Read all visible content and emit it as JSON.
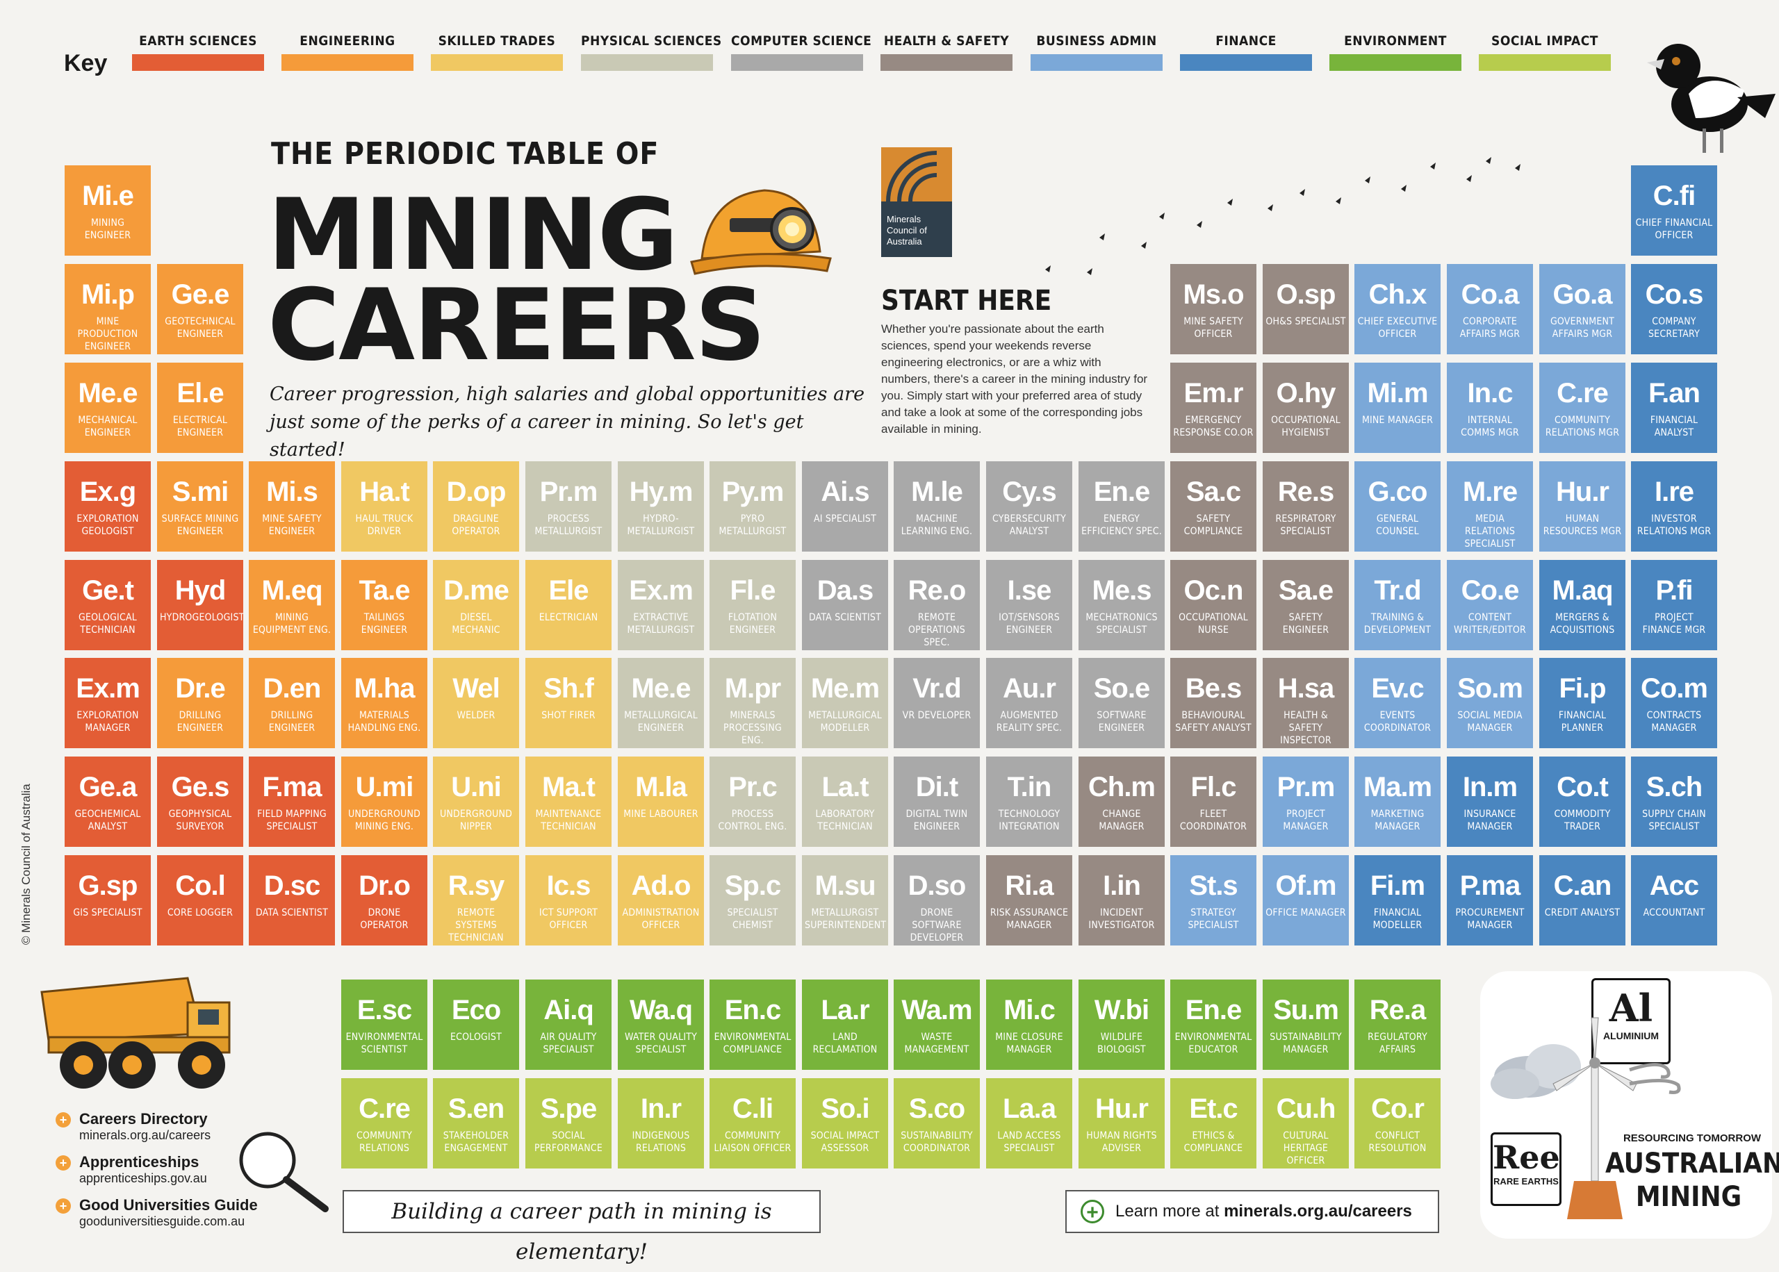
{
  "key": {
    "label": "Key",
    "items": [
      {
        "name": "EARTH SCIENCES",
        "color": "#e35d35"
      },
      {
        "name": "ENGINEERING",
        "color": "#f59b3a"
      },
      {
        "name": "SKILLED TRADES",
        "color": "#f0c862"
      },
      {
        "name": "PHYSICAL SCIENCES",
        "color": "#c9c9b5"
      },
      {
        "name": "COMPUTER SCIENCE",
        "color": "#a9a9a9"
      },
      {
        "name": "HEALTH & SAFETY",
        "color": "#978a83"
      },
      {
        "name": "BUSINESS ADMIN",
        "color": "#7ba8d8"
      },
      {
        "name": "FINANCE",
        "color": "#4a86c0"
      },
      {
        "name": "ENVIRONMENT",
        "color": "#78b43b"
      },
      {
        "name": "SOCIAL IMPACT",
        "color": "#b7cc4d"
      }
    ]
  },
  "title": {
    "small": "THE PERIODIC TABLE OF",
    "line1": "MINING",
    "line2": "CAREERS",
    "tagline": "Career progression, high salaries and global opportunities are just some of the perks of a career in mining. So let's get started!"
  },
  "logo": {
    "text": "Minerals Council of Australia"
  },
  "start": {
    "title": "START HERE",
    "text": "Whether you're passionate about the earth sciences, spend your weekends reverse engineering electronics, or are a whiz with numbers, there's a career in the mining industry for you. Simply start with your preferred area of study and take a look at some of the corresponding jobs available in mining."
  },
  "elements": [
    {
      "sym": "Mi.e",
      "name": "MINING ENGINEER",
      "cat": 1,
      "col": 0,
      "row": 0
    },
    {
      "sym": "Mi.p",
      "name": "MINE PRODUCTION ENGINEER",
      "cat": 1,
      "col": 0,
      "row": 1
    },
    {
      "sym": "Ge.e",
      "name": "GEOTECHNICAL ENGINEER",
      "cat": 1,
      "col": 1,
      "row": 1
    },
    {
      "sym": "Me.e",
      "name": "MECHANICAL ENGINEER",
      "cat": 1,
      "col": 0,
      "row": 2
    },
    {
      "sym": "El.e",
      "name": "ELECTRICAL ENGINEER",
      "cat": 1,
      "col": 1,
      "row": 2
    },
    {
      "sym": "C.fi",
      "name": "CHIEF FINANCIAL OFFICER",
      "cat": 7,
      "col": 17,
      "row": 0
    },
    {
      "sym": "Ms.o",
      "name": "MINE SAFETY OFFICER",
      "cat": 5,
      "col": 12,
      "row": 1
    },
    {
      "sym": "O.sp",
      "name": "OH&S SPECIALIST",
      "cat": 5,
      "col": 13,
      "row": 1
    },
    {
      "sym": "Ch.x",
      "name": "CHIEF EXECUTIVE OFFICER",
      "cat": 6,
      "col": 14,
      "row": 1
    },
    {
      "sym": "Co.a",
      "name": "CORPORATE AFFAIRS MGR",
      "cat": 6,
      "col": 15,
      "row": 1
    },
    {
      "sym": "Go.a",
      "name": "GOVERNMENT AFFAIRS MGR",
      "cat": 6,
      "col": 16,
      "row": 1
    },
    {
      "sym": "Co.s",
      "name": "COMPANY SECRETARY",
      "cat": 7,
      "col": 17,
      "row": 1
    },
    {
      "sym": "Em.r",
      "name": "EMERGENCY RESPONSE CO.OR",
      "cat": 5,
      "col": 12,
      "row": 2
    },
    {
      "sym": "O.hy",
      "name": "OCCUPATIONAL HYGIENIST",
      "cat": 5,
      "col": 13,
      "row": 2
    },
    {
      "sym": "Mi.m",
      "name": "MINE MANAGER",
      "cat": 6,
      "col": 14,
      "row": 2
    },
    {
      "sym": "In.c",
      "name": "INTERNAL COMMS MGR",
      "cat": 6,
      "col": 15,
      "row": 2
    },
    {
      "sym": "C.re",
      "name": "COMMUNITY RELATIONS MGR",
      "cat": 6,
      "col": 16,
      "row": 2
    },
    {
      "sym": "F.an",
      "name": "FINANCIAL ANALYST",
      "cat": 7,
      "col": 17,
      "row": 2
    },
    {
      "sym": "Ex.g",
      "name": "EXPLORATION GEOLOGIST",
      "cat": 0,
      "col": 0,
      "row": 3
    },
    {
      "sym": "S.mi",
      "name": "SURFACE MINING ENGINEER",
      "cat": 1,
      "col": 1,
      "row": 3
    },
    {
      "sym": "Mi.s",
      "name": "MINE SAFETY ENGINEER",
      "cat": 1,
      "col": 2,
      "row": 3
    },
    {
      "sym": "Ha.t",
      "name": "HAUL TRUCK DRIVER",
      "cat": 2,
      "col": 3,
      "row": 3
    },
    {
      "sym": "D.op",
      "name": "DRAGLINE OPERATOR",
      "cat": 2,
      "col": 4,
      "row": 3
    },
    {
      "sym": "Pr.m",
      "name": "PROCESS METALLURGIST",
      "cat": 3,
      "col": 5,
      "row": 3
    },
    {
      "sym": "Hy.m",
      "name": "HYDRO-METALLURGIST",
      "cat": 3,
      "col": 6,
      "row": 3
    },
    {
      "sym": "Py.m",
      "name": "PYRO METALLURGIST",
      "cat": 3,
      "col": 7,
      "row": 3
    },
    {
      "sym": "Ai.s",
      "name": "AI SPECIALIST",
      "cat": 4,
      "col": 8,
      "row": 3
    },
    {
      "sym": "M.le",
      "name": "MACHINE LEARNING ENG.",
      "cat": 4,
      "col": 9,
      "row": 3
    },
    {
      "sym": "Cy.s",
      "name": "CYBERSECURITY ANALYST",
      "cat": 4,
      "col": 10,
      "row": 3
    },
    {
      "sym": "En.e",
      "name": "ENERGY EFFICIENCY SPEC.",
      "cat": 4,
      "col": 11,
      "row": 3
    },
    {
      "sym": "Sa.c",
      "name": "SAFETY COMPLIANCE",
      "cat": 5,
      "col": 12,
      "row": 3
    },
    {
      "sym": "Re.s",
      "name": "RESPIRATORY SPECIALIST",
      "cat": 5,
      "col": 13,
      "row": 3
    },
    {
      "sym": "G.co",
      "name": "GENERAL COUNSEL",
      "cat": 6,
      "col": 14,
      "row": 3
    },
    {
      "sym": "M.re",
      "name": "MEDIA RELATIONS SPECIALIST",
      "cat": 6,
      "col": 15,
      "row": 3
    },
    {
      "sym": "Hu.r",
      "name": "HUMAN RESOURCES MGR",
      "cat": 6,
      "col": 16,
      "row": 3
    },
    {
      "sym": "I.re",
      "name": "INVESTOR RELATIONS MGR",
      "cat": 7,
      "col": 17,
      "row": 3
    },
    {
      "sym": "Ge.t",
      "name": "GEOLOGICAL TECHNICIAN",
      "cat": 0,
      "col": 0,
      "row": 4
    },
    {
      "sym": "Hyd",
      "name": "HYDROGEOLOGIST",
      "cat": 0,
      "col": 1,
      "row": 4
    },
    {
      "sym": "M.eq",
      "name": "MINING EQUIPMENT ENG.",
      "cat": 1,
      "col": 2,
      "row": 4
    },
    {
      "sym": "Ta.e",
      "name": "TAILINGS ENGINEER",
      "cat": 1,
      "col": 3,
      "row": 4
    },
    {
      "sym": "D.me",
      "name": "DIESEL MECHANIC",
      "cat": 2,
      "col": 4,
      "row": 4
    },
    {
      "sym": "Ele",
      "name": "ELECTRICIAN",
      "cat": 2,
      "col": 5,
      "row": 4
    },
    {
      "sym": "Ex.m",
      "name": "EXTRACTIVE METALLURGIST",
      "cat": 3,
      "col": 6,
      "row": 4
    },
    {
      "sym": "Fl.e",
      "name": "FLOTATION ENGINEER",
      "cat": 3,
      "col": 7,
      "row": 4
    },
    {
      "sym": "Da.s",
      "name": "DATA SCIENTIST",
      "cat": 4,
      "col": 8,
      "row": 4
    },
    {
      "sym": "Re.o",
      "name": "REMOTE OPERATIONS SPEC.",
      "cat": 4,
      "col": 9,
      "row": 4
    },
    {
      "sym": "I.se",
      "name": "IOT/SENSORS ENGINEER",
      "cat": 4,
      "col": 10,
      "row": 4
    },
    {
      "sym": "Me.s",
      "name": "MECHATRONICS SPECIALIST",
      "cat": 4,
      "col": 11,
      "row": 4
    },
    {
      "sym": "Oc.n",
      "name": "OCCUPATIONAL NURSE",
      "cat": 5,
      "col": 12,
      "row": 4
    },
    {
      "sym": "Sa.e",
      "name": "SAFETY ENGINEER",
      "cat": 5,
      "col": 13,
      "row": 4
    },
    {
      "sym": "Tr.d",
      "name": "TRAINING & DEVELOPMENT",
      "cat": 6,
      "col": 14,
      "row": 4
    },
    {
      "sym": "Co.e",
      "name": "CONTENT WRITER/EDITOR",
      "cat": 6,
      "col": 15,
      "row": 4
    },
    {
      "sym": "M.aq",
      "name": "MERGERS & ACQUISITIONS",
      "cat": 7,
      "col": 16,
      "row": 4
    },
    {
      "sym": "P.fi",
      "name": "PROJECT FINANCE MGR",
      "cat": 7,
      "col": 17,
      "row": 4
    },
    {
      "sym": "Ex.m",
      "name": "EXPLORATION MANAGER",
      "cat": 0,
      "col": 0,
      "row": 5
    },
    {
      "sym": "Dr.e",
      "name": "DRILLING ENGINEER",
      "cat": 1,
      "col": 1,
      "row": 5
    },
    {
      "sym": "D.en",
      "name": "DRILLING ENGINEER",
      "cat": 1,
      "col": 2,
      "row": 5
    },
    {
      "sym": "M.ha",
      "name": "MATERIALS HANDLING ENG.",
      "cat": 1,
      "col": 3,
      "row": 5
    },
    {
      "sym": "Wel",
      "name": "WELDER",
      "cat": 2,
      "col": 4,
      "row": 5
    },
    {
      "sym": "Sh.f",
      "name": "SHOT FIRER",
      "cat": 2,
      "col": 5,
      "row": 5
    },
    {
      "sym": "Me.e",
      "name": "METALLURGICAL ENGINEER",
      "cat": 3,
      "col": 6,
      "row": 5
    },
    {
      "sym": "M.pr",
      "name": "MINERALS PROCESSING ENG.",
      "cat": 3,
      "col": 7,
      "row": 5
    },
    {
      "sym": "Me.m",
      "name": "METALLURGICAL MODELLER",
      "cat": 3,
      "col": 8,
      "row": 5
    },
    {
      "sym": "Vr.d",
      "name": "VR DEVELOPER",
      "cat": 4,
      "col": 9,
      "row": 5
    },
    {
      "sym": "Au.r",
      "name": "AUGMENTED REALITY SPEC.",
      "cat": 4,
      "col": 10,
      "row": 5
    },
    {
      "sym": "So.e",
      "name": "SOFTWARE ENGINEER",
      "cat": 4,
      "col": 11,
      "row": 5
    },
    {
      "sym": "Be.s",
      "name": "BEHAVIOURAL SAFETY ANALYST",
      "cat": 5,
      "col": 12,
      "row": 5
    },
    {
      "sym": "H.sa",
      "name": "HEALTH & SAFETY INSPECTOR",
      "cat": 5,
      "col": 13,
      "row": 5
    },
    {
      "sym": "Ev.c",
      "name": "EVENTS COORDINATOR",
      "cat": 6,
      "col": 14,
      "row": 5
    },
    {
      "sym": "So.m",
      "name": "SOCIAL MEDIA MANAGER",
      "cat": 6,
      "col": 15,
      "row": 5
    },
    {
      "sym": "Fi.p",
      "name": "FINANCIAL PLANNER",
      "cat": 7,
      "col": 16,
      "row": 5
    },
    {
      "sym": "Co.m",
      "name": "CONTRACTS MANAGER",
      "cat": 7,
      "col": 17,
      "row": 5
    },
    {
      "sym": "Ge.a",
      "name": "GEOCHEMICAL ANALYST",
      "cat": 0,
      "col": 0,
      "row": 6
    },
    {
      "sym": "Ge.s",
      "name": "GEOPHYSICAL SURVEYOR",
      "cat": 0,
      "col": 1,
      "row": 6
    },
    {
      "sym": "F.ma",
      "name": "FIELD MAPPING SPECIALIST",
      "cat": 0,
      "col": 2,
      "row": 6
    },
    {
      "sym": "U.mi",
      "name": "UNDERGROUND MINING ENG.",
      "cat": 1,
      "col": 3,
      "row": 6
    },
    {
      "sym": "U.ni",
      "name": "UNDERGROUND NIPPER",
      "cat": 2,
      "col": 4,
      "row": 6
    },
    {
      "sym": "Ma.t",
      "name": "MAINTENANCE TECHNICIAN",
      "cat": 2,
      "col": 5,
      "row": 6
    },
    {
      "sym": "M.la",
      "name": "MINE LABOURER",
      "cat": 2,
      "col": 6,
      "row": 6
    },
    {
      "sym": "Pr.c",
      "name": "PROCESS CONTROL ENG.",
      "cat": 3,
      "col": 7,
      "row": 6
    },
    {
      "sym": "La.t",
      "name": "LABORATORY TECHNICIAN",
      "cat": 3,
      "col": 8,
      "row": 6
    },
    {
      "sym": "Di.t",
      "name": "DIGITAL TWIN ENGINEER",
      "cat": 4,
      "col": 9,
      "row": 6
    },
    {
      "sym": "T.in",
      "name": "TECHNOLOGY INTEGRATION",
      "cat": 4,
      "col": 10,
      "row": 6
    },
    {
      "sym": "Ch.m",
      "name": "CHANGE MANAGER",
      "cat": 5,
      "col": 11,
      "row": 6
    },
    {
      "sym": "Fl.c",
      "name": "FLEET COORDINATOR",
      "cat": 5,
      "col": 12,
      "row": 6
    },
    {
      "sym": "Pr.m",
      "name": "PROJECT MANAGER",
      "cat": 6,
      "col": 13,
      "row": 6
    },
    {
      "sym": "Ma.m",
      "name": "MARKETING MANAGER",
      "cat": 6,
      "col": 14,
      "row": 6
    },
    {
      "sym": "In.m",
      "name": "INSURANCE MANAGER",
      "cat": 7,
      "col": 15,
      "row": 6
    },
    {
      "sym": "Co.t",
      "name": "COMMODITY TRADER",
      "cat": 7,
      "col": 16,
      "row": 6
    },
    {
      "sym": "S.ch",
      "name": "SUPPLY CHAIN SPECIALIST",
      "cat": 7,
      "col": 17,
      "row": 6
    },
    {
      "sym": "G.sp",
      "name": "GIS SPECIALIST",
      "cat": 0,
      "col": 0,
      "row": 7
    },
    {
      "sym": "Co.l",
      "name": "CORE LOGGER",
      "cat": 0,
      "col": 1,
      "row": 7
    },
    {
      "sym": "D.sc",
      "name": "DATA SCIENTIST",
      "cat": 0,
      "col": 2,
      "row": 7
    },
    {
      "sym": "Dr.o",
      "name": "DRONE OPERATOR",
      "cat": 0,
      "col": 3,
      "row": 7
    },
    {
      "sym": "R.sy",
      "name": "REMOTE SYSTEMS TECHNICIAN",
      "cat": 2,
      "col": 4,
      "row": 7
    },
    {
      "sym": "Ic.s",
      "name": "ICT SUPPORT OFFICER",
      "cat": 2,
      "col": 5,
      "row": 7
    },
    {
      "sym": "Ad.o",
      "name": "ADMINISTRATION OFFICER",
      "cat": 2,
      "col": 6,
      "row": 7
    },
    {
      "sym": "Sp.c",
      "name": "SPECIALIST CHEMIST",
      "cat": 3,
      "col": 7,
      "row": 7
    },
    {
      "sym": "M.su",
      "name": "METALLURGIST SUPERINTENDENT",
      "cat": 3,
      "col": 8,
      "row": 7
    },
    {
      "sym": "D.so",
      "name": "DRONE SOFTWARE DEVELOPER",
      "cat": 4,
      "col": 9,
      "row": 7
    },
    {
      "sym": "Ri.a",
      "name": "RISK ASSURANCE MANAGER",
      "cat": 5,
      "col": 10,
      "row": 7
    },
    {
      "sym": "I.in",
      "name": "INCIDENT INVESTIGATOR",
      "cat": 5,
      "col": 11,
      "row": 7
    },
    {
      "sym": "St.s",
      "name": "STRATEGY SPECIALIST",
      "cat": 6,
      "col": 12,
      "row": 7
    },
    {
      "sym": "Of.m",
      "name": "OFFICE MANAGER",
      "cat": 6,
      "col": 13,
      "row": 7
    },
    {
      "sym": "Fi.m",
      "name": "FINANCIAL MODELLER",
      "cat": 7,
      "col": 14,
      "row": 7
    },
    {
      "sym": "P.ma",
      "name": "PROCUREMENT MANAGER",
      "cat": 7,
      "col": 15,
      "row": 7
    },
    {
      "sym": "C.an",
      "name": "CREDIT ANALYST",
      "cat": 7,
      "col": 16,
      "row": 7
    },
    {
      "sym": "Acc",
      "name": "ACCOUNTANT",
      "cat": 7,
      "col": 17,
      "row": 7
    },
    {
      "sym": "E.sc",
      "name": "ENVIRONMENTAL SCIENTIST",
      "cat": 8,
      "col": 3,
      "row": 8
    },
    {
      "sym": "Eco",
      "name": "ECOLOGIST",
      "cat": 8,
      "col": 4,
      "row": 8
    },
    {
      "sym": "Ai.q",
      "name": "AIR QUALITY SPECIALIST",
      "cat": 8,
      "col": 5,
      "row": 8
    },
    {
      "sym": "Wa.q",
      "name": "WATER QUALITY SPECIALIST",
      "cat": 8,
      "col": 6,
      "row": 8
    },
    {
      "sym": "En.c",
      "name": "ENVIRONMENTAL COMPLIANCE",
      "cat": 8,
      "col": 7,
      "row": 8
    },
    {
      "sym": "La.r",
      "name": "LAND RECLAMATION",
      "cat": 8,
      "col": 8,
      "row": 8
    },
    {
      "sym": "Wa.m",
      "name": "WASTE MANAGEMENT",
      "cat": 8,
      "col": 9,
      "row": 8
    },
    {
      "sym": "Mi.c",
      "name": "MINE CLOSURE MANAGER",
      "cat": 8,
      "col": 10,
      "row": 8
    },
    {
      "sym": "W.bi",
      "name": "WILDLIFE BIOLOGIST",
      "cat": 8,
      "col": 11,
      "row": 8
    },
    {
      "sym": "En.e",
      "name": "ENVIRONMENTAL EDUCATOR",
      "cat": 8,
      "col": 12,
      "row": 8
    },
    {
      "sym": "Su.m",
      "name": "SUSTAINABILITY MANAGER",
      "cat": 8,
      "col": 13,
      "row": 8
    },
    {
      "sym": "Re.a",
      "name": "REGULATORY AFFAIRS",
      "cat": 8,
      "col": 14,
      "row": 8
    },
    {
      "sym": "C.re",
      "name": "COMMUNITY RELATIONS",
      "cat": 9,
      "col": 3,
      "row": 9
    },
    {
      "sym": "S.en",
      "name": "STAKEHOLDER ENGAGEMENT",
      "cat": 9,
      "col": 4,
      "row": 9
    },
    {
      "sym": "S.pe",
      "name": "SOCIAL PERFORMANCE",
      "cat": 9,
      "col": 5,
      "row": 9
    },
    {
      "sym": "In.r",
      "name": "INDIGENOUS RELATIONS",
      "cat": 9,
      "col": 6,
      "row": 9
    },
    {
      "sym": "C.li",
      "name": "COMMUNITY LIAISON OFFICER",
      "cat": 9,
      "col": 7,
      "row": 9
    },
    {
      "sym": "So.i",
      "name": "SOCIAL IMPACT ASSESSOR",
      "cat": 9,
      "col": 8,
      "row": 9
    },
    {
      "sym": "S.co",
      "name": "SUSTAINABILITY COORDINATOR",
      "cat": 9,
      "col": 9,
      "row": 9
    },
    {
      "sym": "La.a",
      "name": "LAND ACCESS SPECIALIST",
      "cat": 9,
      "col": 10,
      "row": 9
    },
    {
      "sym": "Hu.r",
      "name": "HUMAN RIGHTS ADVISER",
      "cat": 9,
      "col": 11,
      "row": 9
    },
    {
      "sym": "Et.c",
      "name": "ETHICS & COMPLIANCE",
      "cat": 9,
      "col": 12,
      "row": 9
    },
    {
      "sym": "Cu.h",
      "name": "CULTURAL HERITAGE OFFICER",
      "cat": 9,
      "col": 13,
      "row": 9
    },
    {
      "sym": "Co.r",
      "name": "CONFLICT RESOLUTION",
      "cat": 9,
      "col": 14,
      "row": 9
    }
  ],
  "links": [
    {
      "title": "Careers Directory",
      "url": "minerals.org.au/careers"
    },
    {
      "title": "Apprenticeships",
      "url": "apprenticeships.gov.au"
    },
    {
      "title": "Good Universities Guide",
      "url": "gooduniversitiesguide.com.au"
    }
  ],
  "bottom": {
    "elementary": "Building a career path in mining is elementary!",
    "learn_prefix": "Learn more at ",
    "learn_url": "minerals.org.au/careers"
  },
  "copyright": "© Minerals Council of Australia",
  "stickers": {
    "al_symbol": "Al",
    "al_name": "ALUMINIUM",
    "ree_symbol": "Ree",
    "ree_name": "RARE EARTHS",
    "resourcing": "RESOURCING TOMORROW",
    "australian": "AUSTRALIAN",
    "mining": "MINING"
  }
}
